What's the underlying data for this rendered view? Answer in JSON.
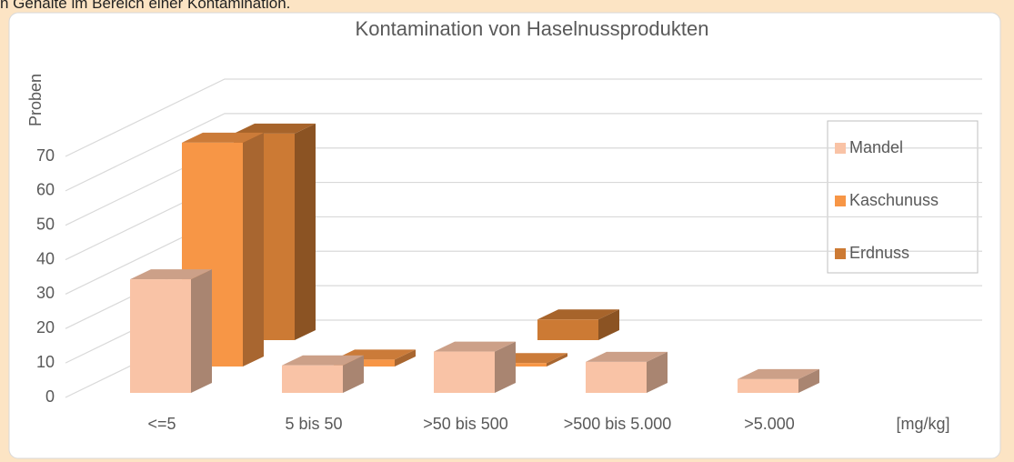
{
  "header": {
    "text": "n Gehalte im Bereich einer Kontamination."
  },
  "chart_data": {
    "type": "bar3d",
    "title": "Kontamination von Haselnussprodukten",
    "y_label": "Proben",
    "x_unit_label": "[mg/kg]",
    "categories": [
      "<=5",
      "5 bis  50",
      ">50 bis 500",
      ">500 bis 5.000",
      ">5.000"
    ],
    "series": [
      {
        "name": "Mandel",
        "color": "#f9c3a6",
        "values": [
          33,
          8,
          12,
          9,
          4
        ]
      },
      {
        "name": "Kaschunuss",
        "color": "#f79646",
        "values": [
          65,
          2,
          1,
          0,
          0
        ]
      },
      {
        "name": "Erdnuss",
        "color": "#cc7a34",
        "values": [
          60,
          0,
          6,
          0,
          0
        ]
      }
    ],
    "ylim": [
      0,
      70
    ],
    "yticks": [
      0,
      10,
      20,
      30,
      40,
      50,
      60,
      70
    ],
    "grid": true,
    "legend": "right"
  }
}
